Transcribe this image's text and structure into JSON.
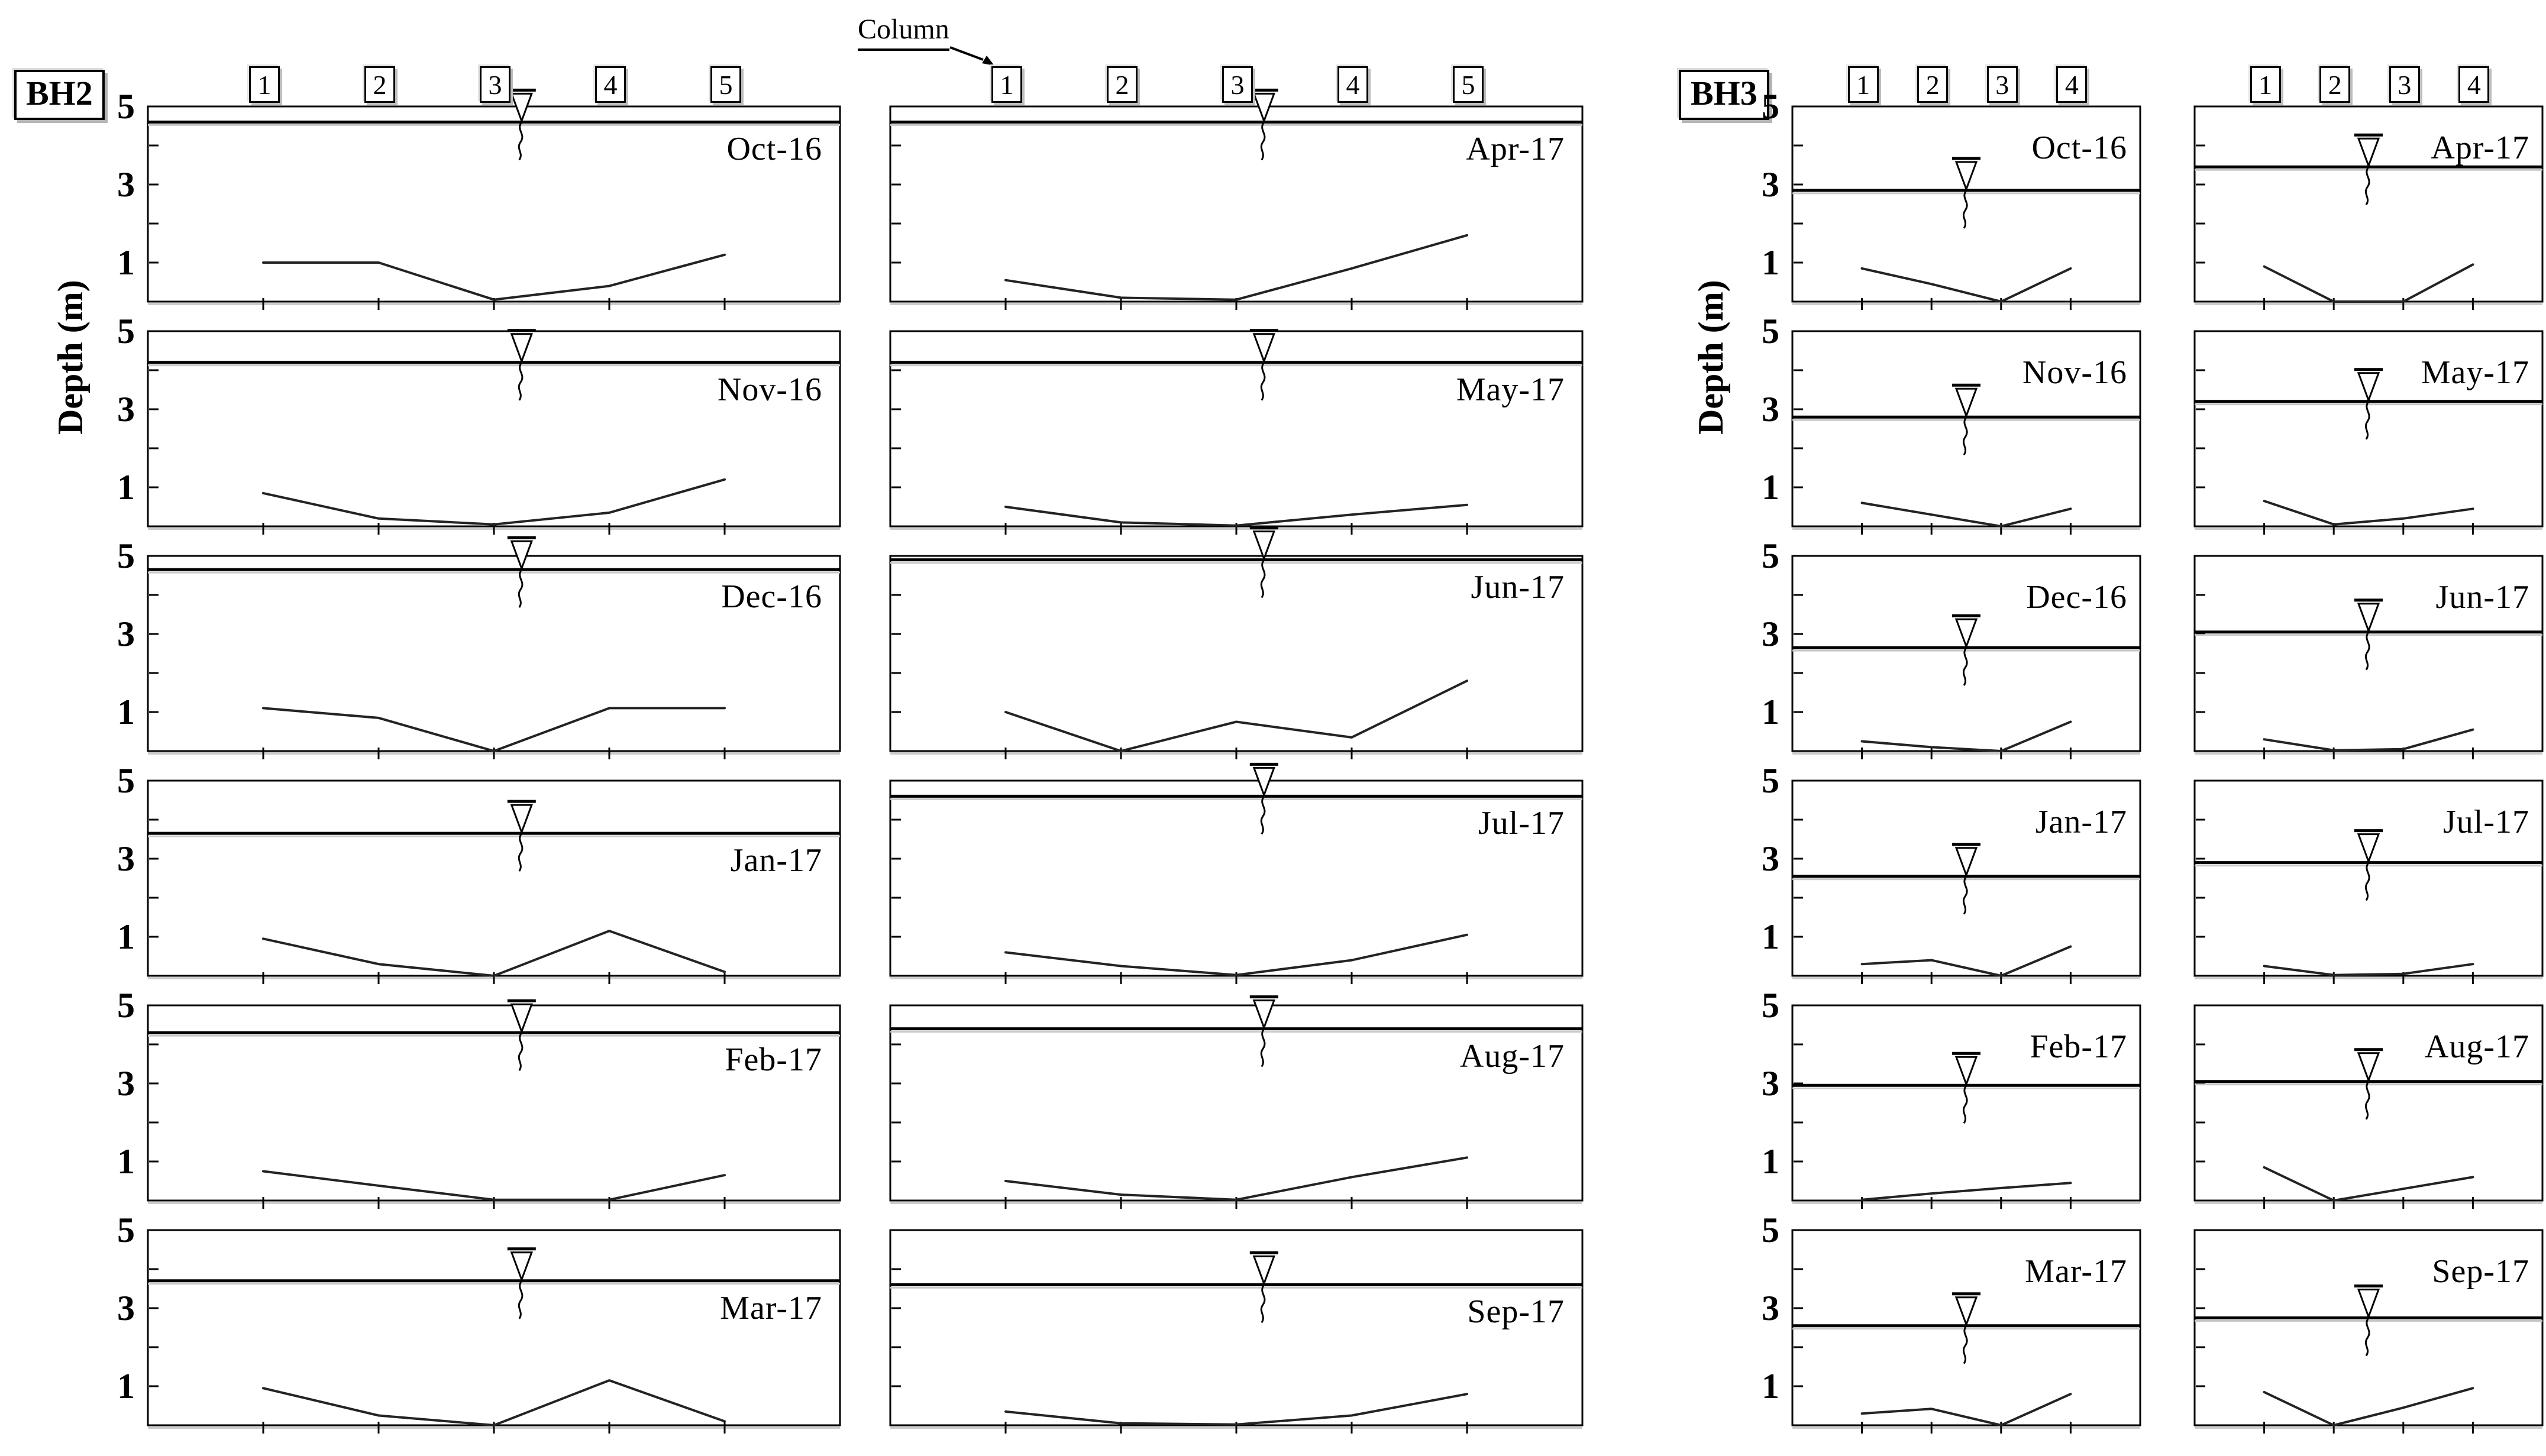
{
  "figure": {
    "bh2_label": "BH2",
    "bh3_label": "BH3",
    "column_annotation": "Column",
    "y_axis_label": "Depth (m)",
    "y_ticks": [
      "5",
      "3",
      "1"
    ],
    "water_table_symbol": "inverted-triangle-with-squiggle",
    "ink_color": "#000000",
    "background_color": "#ffffff"
  },
  "chart_data": [
    {
      "name": "BH2",
      "type": "line",
      "ylabel": "Depth (m)",
      "ylim": [
        0,
        5
      ],
      "y_tick_labels": [
        5,
        3,
        1
      ],
      "columns": [
        "1",
        "2",
        "3",
        "4",
        "5"
      ],
      "layout": "two columns of 6 panels; Oct-16 to Mar-17 in left column, Apr-17 to Sep-17 in right column",
      "water_symbol_x_fraction": 0.54,
      "panels": [
        {
          "month": "Oct-16",
          "water_table_m": 4.6,
          "profile_m": [
            1.0,
            1.0,
            0.05,
            0.4,
            1.2
          ]
        },
        {
          "month": "Nov-16",
          "water_table_m": 4.2,
          "profile_m": [
            0.85,
            0.2,
            0.05,
            0.35,
            1.2
          ]
        },
        {
          "month": "Dec-16",
          "water_table_m": 4.65,
          "profile_m": [
            1.1,
            0.85,
            0.0,
            1.1,
            1.1
          ]
        },
        {
          "month": "Jan-17",
          "water_table_m": 3.65,
          "profile_m": [
            0.95,
            0.3,
            0.0,
            1.15,
            0.1
          ]
        },
        {
          "month": "Feb-17",
          "water_table_m": 4.3,
          "profile_m": [
            0.75,
            0.38,
            0.02,
            0.02,
            0.65
          ]
        },
        {
          "month": "Mar-17",
          "water_table_m": 3.7,
          "profile_m": [
            0.95,
            0.25,
            0.0,
            1.15,
            0.1
          ]
        },
        {
          "month": "Apr-17",
          "water_table_m": 4.6,
          "profile_m": [
            0.55,
            0.1,
            0.05,
            0.85,
            1.7
          ]
        },
        {
          "month": "May-17",
          "water_table_m": 4.2,
          "profile_m": [
            0.5,
            0.1,
            0.02,
            0.3,
            0.55
          ]
        },
        {
          "month": "Jun-17",
          "water_table_m": 4.9,
          "profile_m": [
            1.0,
            0.0,
            0.75,
            0.35,
            1.8
          ]
        },
        {
          "month": "Jul-17",
          "water_table_m": 4.6,
          "profile_m": [
            0.6,
            0.25,
            0.02,
            0.4,
            1.05
          ]
        },
        {
          "month": "Aug-17",
          "water_table_m": 4.4,
          "profile_m": [
            0.5,
            0.15,
            0.02,
            0.6,
            1.1
          ]
        },
        {
          "month": "Sep-17",
          "water_table_m": 3.6,
          "profile_m": [
            0.35,
            0.05,
            0.02,
            0.25,
            0.8
          ]
        }
      ]
    },
    {
      "name": "BH3",
      "type": "line",
      "ylabel": "Depth (m)",
      "ylim": [
        0,
        5
      ],
      "y_tick_labels": [
        5,
        3,
        1
      ],
      "columns": [
        "1",
        "2",
        "3",
        "4"
      ],
      "layout": "two columns of 6 panels; Oct-16 to Mar-17 in left column, Apr-17 to Sep-17 in right column",
      "water_symbol_x_fraction": 0.5,
      "panels": [
        {
          "month": "Oct-16",
          "water_table_m": 2.85,
          "profile_m": [
            0.85,
            0.45,
            0.0,
            0.85
          ]
        },
        {
          "month": "Nov-16",
          "water_table_m": 2.8,
          "profile_m": [
            0.6,
            0.3,
            0.0,
            0.45
          ]
        },
        {
          "month": "Dec-16",
          "water_table_m": 2.65,
          "profile_m": [
            0.25,
            0.1,
            0.0,
            0.75
          ]
        },
        {
          "month": "Jan-17",
          "water_table_m": 2.55,
          "profile_m": [
            0.3,
            0.4,
            0.0,
            0.75
          ]
        },
        {
          "month": "Feb-17",
          "water_table_m": 2.95,
          "profile_m": [
            0.02,
            0.18,
            0.32,
            0.45
          ]
        },
        {
          "month": "Mar-17",
          "water_table_m": 2.55,
          "profile_m": [
            0.3,
            0.42,
            0.0,
            0.8
          ]
        },
        {
          "month": "Apr-17",
          "water_table_m": 3.45,
          "profile_m": [
            0.9,
            0.0,
            0.0,
            0.95
          ]
        },
        {
          "month": "May-17",
          "water_table_m": 3.2,
          "profile_m": [
            0.65,
            0.05,
            0.2,
            0.45
          ]
        },
        {
          "month": "Jun-17",
          "water_table_m": 3.05,
          "profile_m": [
            0.3,
            0.02,
            0.05,
            0.55
          ]
        },
        {
          "month": "Jul-17",
          "water_table_m": 2.9,
          "profile_m": [
            0.25,
            0.02,
            0.05,
            0.3
          ]
        },
        {
          "month": "Aug-17",
          "water_table_m": 3.05,
          "profile_m": [
            0.85,
            0.0,
            0.3,
            0.6
          ]
        },
        {
          "month": "Sep-17",
          "water_table_m": 2.75,
          "profile_m": [
            0.85,
            0.0,
            0.45,
            0.95
          ]
        }
      ]
    }
  ]
}
